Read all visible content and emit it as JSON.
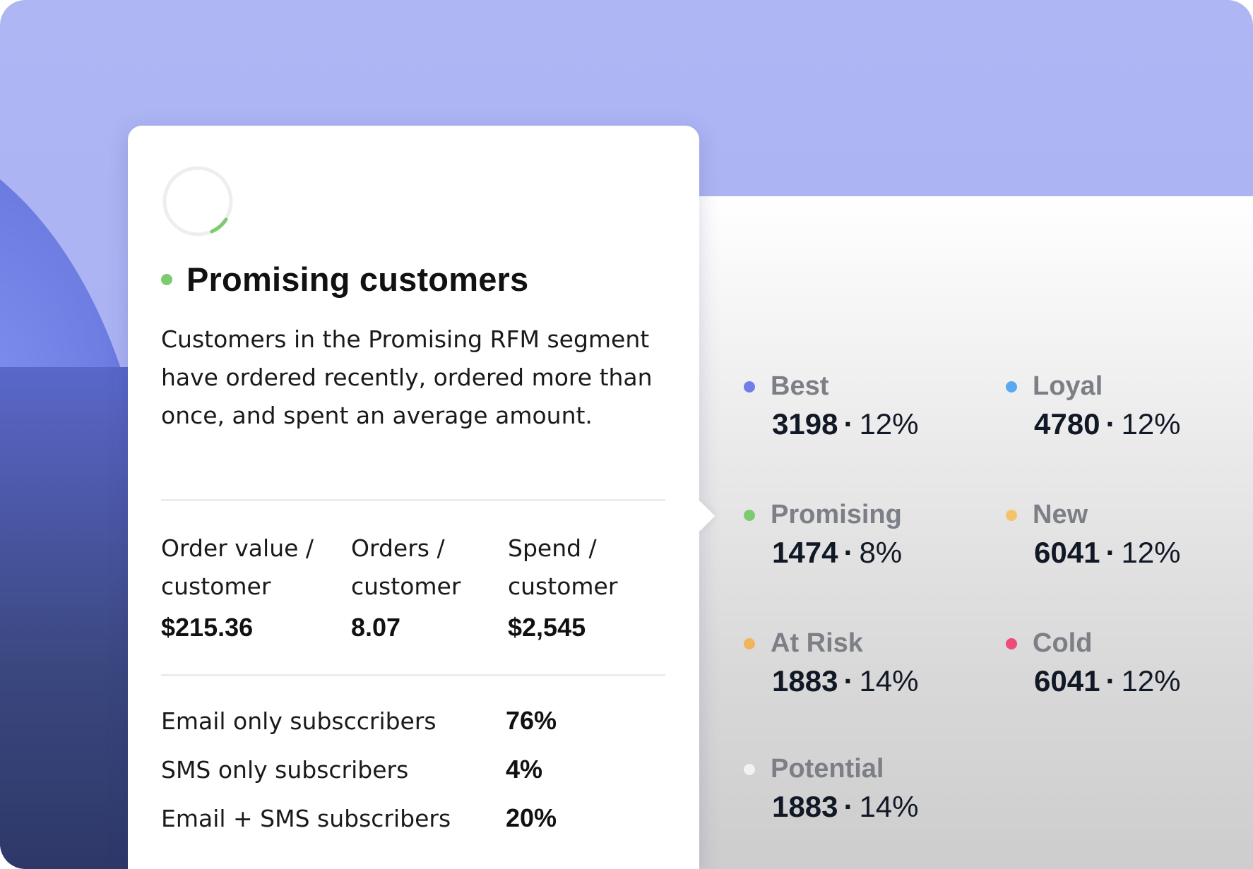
{
  "card": {
    "title": "Promising customers",
    "title_dot_color": "#7ccb6f",
    "progress_icon": "circular-progress-icon",
    "progress_color": "#7ccb6f",
    "description": "Customers in the Promising RFM segment have ordered recently, ordered more than once, and spent an average amount.",
    "metrics": [
      {
        "label": "Order value / customer",
        "value": "$215.36"
      },
      {
        "label": "Orders / customer",
        "value": "8.07"
      },
      {
        "label": "Spend / customer",
        "value": "$2,545"
      }
    ],
    "subscribers": [
      {
        "label": "Email only subsccribers",
        "value": "76%"
      },
      {
        "label": "SMS only subscribers",
        "value": "4%"
      },
      {
        "label": "Email + SMS subscribers",
        "value": "20%"
      }
    ]
  },
  "segments": [
    {
      "name": "Best",
      "count": "3198",
      "sep": "·",
      "percent": "12%",
      "color": "#6f7ee8"
    },
    {
      "name": "Loyal",
      "count": "4780",
      "sep": "·",
      "percent": "12%",
      "color": "#5aa8f0"
    },
    {
      "name": "Promising",
      "count": "1474",
      "sep": "·",
      "percent": "8%",
      "color": "#7ccb6f"
    },
    {
      "name": "New",
      "count": "6041",
      "sep": "·",
      "percent": "12%",
      "color": "#f3c46a"
    },
    {
      "name": "At Risk",
      "count": "1883",
      "sep": "·",
      "percent": "14%",
      "color": "#f1b55b"
    },
    {
      "name": "Cold",
      "count": "6041",
      "sep": "·",
      "percent": "12%",
      "color": "#ee4a7a"
    },
    {
      "name": "Potential",
      "count": "1883",
      "sep": "·",
      "percent": "14%",
      "color": "#f2f2f2"
    }
  ]
}
